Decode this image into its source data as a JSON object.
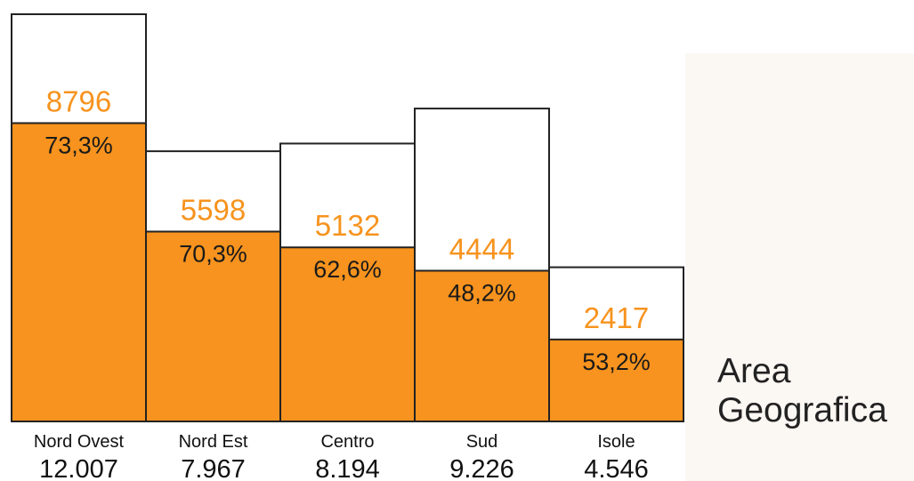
{
  "colors": {
    "accent": "#f7931e",
    "total_fill": "#ffffff",
    "stroke": "#222222"
  },
  "chart_data": {
    "type": "bar",
    "title_lines": [
      "Area",
      "Geografica"
    ],
    "categories": [
      "Nord Ovest",
      "Nord Est",
      "Centro",
      "Sud",
      "Isole"
    ],
    "totals": [
      12007,
      7967,
      8194,
      9226,
      4546
    ],
    "totals_text": [
      "12.007",
      "7.967",
      "8.194",
      "9.226",
      "4.546"
    ],
    "series": [
      {
        "values": [
          8796,
          5598,
          5132,
          4444,
          2417
        ]
      }
    ],
    "values_text": [
      "8796",
      "5598",
      "5132",
      "4444",
      "2417"
    ],
    "percent_text": [
      "73,3%",
      "70,3%",
      "62,6%",
      "48,2%",
      "53,2%"
    ]
  }
}
